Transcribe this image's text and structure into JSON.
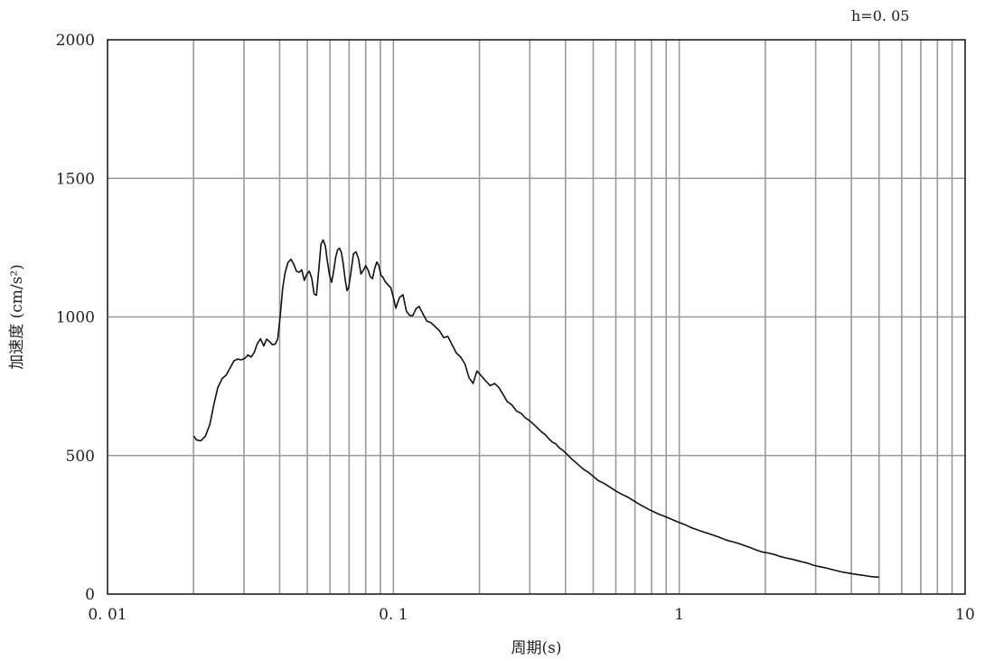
{
  "chart_data": {
    "type": "line",
    "title": "",
    "annotation": "h=0. 05",
    "xlabel": "周期(s)",
    "ylabel": "加速度 (cm/s²)",
    "xscale": "log",
    "xlim": [
      0.01,
      10
    ],
    "ylim": [
      0,
      2000
    ],
    "grid": true,
    "x_ticks": [
      {
        "value": 0.01,
        "label": "0. 01"
      },
      {
        "value": 0.1,
        "label": "0. 1"
      },
      {
        "value": 1,
        "label": "1"
      },
      {
        "value": 10,
        "label": "10"
      }
    ],
    "y_ticks": [
      {
        "value": 0,
        "label": "0"
      },
      {
        "value": 500,
        "label": "500"
      },
      {
        "value": 1000,
        "label": "1000"
      },
      {
        "value": 1500,
        "label": "1500"
      },
      {
        "value": 2000,
        "label": "2000"
      }
    ],
    "vertical_gridlines": [
      0.02,
      0.03,
      0.04,
      0.05,
      0.06,
      0.07,
      0.08,
      0.09,
      0.1,
      0.2,
      0.3,
      0.4,
      0.5,
      0.6,
      0.7,
      0.8,
      0.9,
      1,
      2,
      3,
      4,
      5,
      6,
      7,
      8,
      9
    ],
    "horizontal_gridlines": [
      500,
      1000,
      1500
    ],
    "series": [
      {
        "color": "#111111",
        "points": [
          [
            0.02,
            570
          ],
          [
            0.0205,
            556
          ],
          [
            0.0212,
            553
          ],
          [
            0.022,
            570
          ],
          [
            0.0228,
            612
          ],
          [
            0.0235,
            680
          ],
          [
            0.0243,
            745
          ],
          [
            0.0252,
            778
          ],
          [
            0.026,
            790
          ],
          [
            0.0268,
            815
          ],
          [
            0.0277,
            842
          ],
          [
            0.0285,
            848
          ],
          [
            0.0293,
            845
          ],
          [
            0.0302,
            850
          ],
          [
            0.031,
            863
          ],
          [
            0.0318,
            855
          ],
          [
            0.0326,
            872
          ],
          [
            0.0334,
            903
          ],
          [
            0.0343,
            921
          ],
          [
            0.0352,
            895
          ],
          [
            0.036,
            920
          ],
          [
            0.0368,
            912
          ],
          [
            0.0377,
            900
          ],
          [
            0.0386,
            902
          ],
          [
            0.0394,
            921
          ],
          [
            0.0402,
            1005
          ],
          [
            0.041,
            1105
          ],
          [
            0.0418,
            1160
          ],
          [
            0.0428,
            1197
          ],
          [
            0.0438,
            1208
          ],
          [
            0.0448,
            1191
          ],
          [
            0.0458,
            1165
          ],
          [
            0.0468,
            1161
          ],
          [
            0.0478,
            1170
          ],
          [
            0.0488,
            1132
          ],
          [
            0.0498,
            1154
          ],
          [
            0.0508,
            1165
          ],
          [
            0.0518,
            1140
          ],
          [
            0.0528,
            1083
          ],
          [
            0.0538,
            1078
          ],
          [
            0.0548,
            1168
          ],
          [
            0.0558,
            1262
          ],
          [
            0.0568,
            1278
          ],
          [
            0.0578,
            1256
          ],
          [
            0.0588,
            1198
          ],
          [
            0.0598,
            1150
          ],
          [
            0.0608,
            1125
          ],
          [
            0.0618,
            1165
          ],
          [
            0.0628,
            1215
          ],
          [
            0.0638,
            1242
          ],
          [
            0.0648,
            1248
          ],
          [
            0.0658,
            1232
          ],
          [
            0.0668,
            1190
          ],
          [
            0.0678,
            1135
          ],
          [
            0.0688,
            1095
          ],
          [
            0.0698,
            1108
          ],
          [
            0.071,
            1160
          ],
          [
            0.0725,
            1228
          ],
          [
            0.074,
            1235
          ],
          [
            0.0755,
            1210
          ],
          [
            0.077,
            1155
          ],
          [
            0.0785,
            1168
          ],
          [
            0.08,
            1185
          ],
          [
            0.0815,
            1170
          ],
          [
            0.083,
            1145
          ],
          [
            0.0845,
            1138
          ],
          [
            0.086,
            1175
          ],
          [
            0.0875,
            1198
          ],
          [
            0.089,
            1185
          ],
          [
            0.0905,
            1150
          ],
          [
            0.092,
            1143
          ],
          [
            0.0935,
            1128
          ],
          [
            0.095,
            1120
          ],
          [
            0.0965,
            1112
          ],
          [
            0.098,
            1105
          ],
          [
            0.1,
            1070
          ],
          [
            0.102,
            1032
          ],
          [
            0.105,
            1070
          ],
          [
            0.108,
            1080
          ],
          [
            0.111,
            1022
          ],
          [
            0.114,
            1005
          ],
          [
            0.117,
            1005
          ],
          [
            0.12,
            1030
          ],
          [
            0.123,
            1038
          ],
          [
            0.127,
            1010
          ],
          [
            0.131,
            985
          ],
          [
            0.135,
            980
          ],
          [
            0.14,
            965
          ],
          [
            0.145,
            950
          ],
          [
            0.15,
            925
          ],
          [
            0.155,
            930
          ],
          [
            0.16,
            902
          ],
          [
            0.166,
            870
          ],
          [
            0.172,
            855
          ],
          [
            0.178,
            830
          ],
          [
            0.184,
            780
          ],
          [
            0.19,
            760
          ],
          [
            0.196,
            805
          ],
          [
            0.202,
            790
          ],
          [
            0.21,
            770
          ],
          [
            0.218,
            752
          ],
          [
            0.226,
            760
          ],
          [
            0.234,
            745
          ],
          [
            0.242,
            720
          ],
          [
            0.25,
            695
          ],
          [
            0.26,
            682
          ],
          [
            0.27,
            660
          ],
          [
            0.28,
            652
          ],
          [
            0.29,
            635
          ],
          [
            0.3,
            625
          ],
          [
            0.31,
            612
          ],
          [
            0.32,
            598
          ],
          [
            0.33,
            585
          ],
          [
            0.34,
            575
          ],
          [
            0.35,
            560
          ],
          [
            0.36,
            548
          ],
          [
            0.37,
            542
          ],
          [
            0.38,
            528
          ],
          [
            0.39,
            520
          ],
          [
            0.4,
            510
          ],
          [
            0.42,
            488
          ],
          [
            0.44,
            470
          ],
          [
            0.46,
            452
          ],
          [
            0.48,
            440
          ],
          [
            0.5,
            425
          ],
          [
            0.52,
            410
          ],
          [
            0.54,
            402
          ],
          [
            0.56,
            392
          ],
          [
            0.58,
            382
          ],
          [
            0.6,
            372
          ],
          [
            0.63,
            360
          ],
          [
            0.66,
            350
          ],
          [
            0.69,
            338
          ],
          [
            0.72,
            326
          ],
          [
            0.75,
            316
          ],
          [
            0.78,
            306
          ],
          [
            0.81,
            298
          ],
          [
            0.85,
            288
          ],
          [
            0.89,
            280
          ],
          [
            0.93,
            272
          ],
          [
            0.97,
            264
          ],
          [
            1.0,
            258
          ],
          [
            1.05,
            250
          ],
          [
            1.1,
            240
          ],
          [
            1.15,
            233
          ],
          [
            1.2,
            226
          ],
          [
            1.26,
            219
          ],
          [
            1.32,
            212
          ],
          [
            1.38,
            205
          ],
          [
            1.45,
            196
          ],
          [
            1.52,
            190
          ],
          [
            1.6,
            184
          ],
          [
            1.68,
            176
          ],
          [
            1.76,
            169
          ],
          [
            1.85,
            160
          ],
          [
            1.95,
            152
          ],
          [
            2.05,
            148
          ],
          [
            2.15,
            143
          ],
          [
            2.25,
            136
          ],
          [
            2.35,
            131
          ],
          [
            2.5,
            125
          ],
          [
            2.65,
            118
          ],
          [
            2.8,
            112
          ],
          [
            2.95,
            104
          ],
          [
            3.1,
            99
          ],
          [
            3.3,
            93
          ],
          [
            3.5,
            86
          ],
          [
            3.7,
            80
          ],
          [
            3.9,
            76
          ],
          [
            4.1,
            72
          ],
          [
            4.3,
            69
          ],
          [
            4.5,
            66
          ],
          [
            4.7,
            63
          ],
          [
            5.0,
            61
          ]
        ]
      }
    ]
  }
}
